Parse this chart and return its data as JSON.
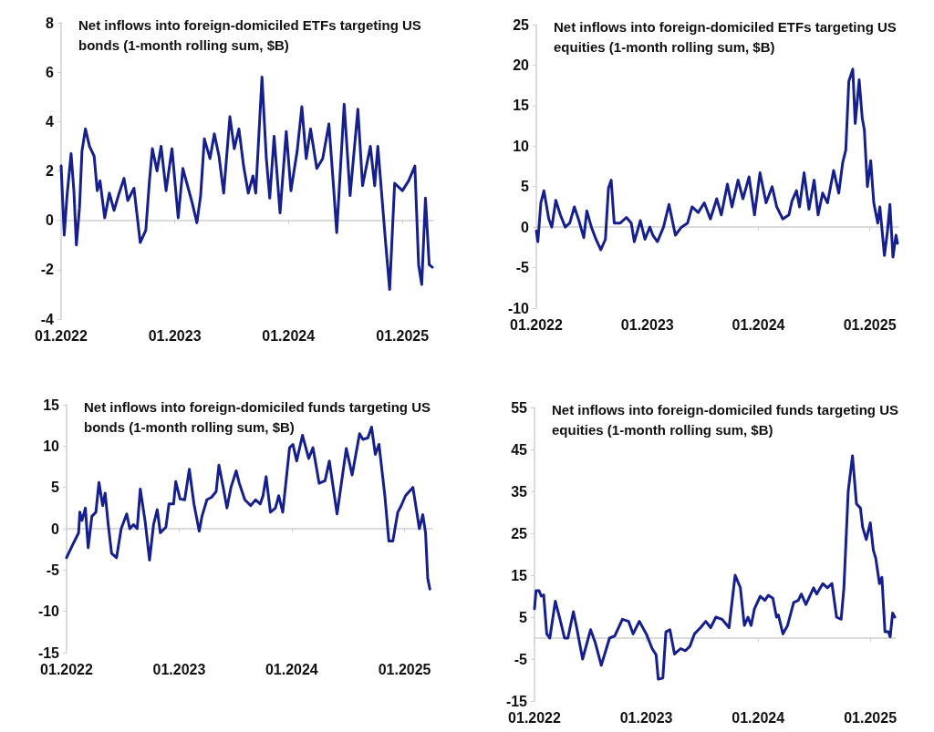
{
  "chart_data": [
    {
      "type": "line",
      "title": "Net inflows into foreign-domiciled ETFs targeting US bonds (1-month rolling sum, $B)",
      "xlim": [
        "2022-01-01",
        "2025-04-10"
      ],
      "xticks": [
        {
          "value": "2022-01-01",
          "label": "01.2022"
        },
        {
          "value": "2023-01-01",
          "label": "01.2023"
        },
        {
          "value": "2024-01-01",
          "label": "01.2024"
        },
        {
          "value": "2025-01-01",
          "label": "01.2025"
        }
      ],
      "ylim": [
        -4,
        8
      ],
      "yticks": [
        -4,
        -2,
        0,
        2,
        4,
        6,
        8
      ],
      "series": [
        {
          "color": "#15208e",
          "x": [
            "2022-01-01",
            "2022-01-11",
            "2022-01-20",
            "2022-02-02",
            "2022-02-11",
            "2022-02-19",
            "2022-03-01",
            "2022-03-09",
            "2022-03-20",
            "2022-04-02",
            "2022-04-17",
            "2022-04-27",
            "2022-05-06",
            "2022-05-21",
            "2022-06-05",
            "2022-06-20",
            "2022-07-04",
            "2022-07-22",
            "2022-08-03",
            "2022-08-23",
            "2022-09-12",
            "2022-09-30",
            "2022-10-11",
            "2022-10-21",
            "2022-11-05",
            "2022-11-18",
            "2022-12-04",
            "2022-12-23",
            "2023-01-12",
            "2023-01-27",
            "2023-02-11",
            "2023-02-26",
            "2023-03-13",
            "2023-03-25",
            "2023-04-06",
            "2023-04-24",
            "2023-05-08",
            "2023-05-23",
            "2023-06-07",
            "2023-06-27",
            "2023-07-11",
            "2023-07-26",
            "2023-08-10",
            "2023-08-25",
            "2023-09-09",
            "2023-09-18",
            "2023-10-08",
            "2023-10-22",
            "2023-11-02",
            "2023-11-16",
            "2023-12-05",
            "2023-12-25",
            "2024-01-09",
            "2024-01-29",
            "2024-02-13",
            "2024-02-27",
            "2024-03-12",
            "2024-04-01",
            "2024-04-20",
            "2024-05-10",
            "2024-05-24",
            "2024-06-04",
            "2024-06-28",
            "2024-07-17",
            "2024-08-11",
            "2024-08-26",
            "2024-09-20",
            "2024-10-04",
            "2024-10-14",
            "2024-11-08",
            "2024-11-21",
            "2024-12-07",
            "2025-01-01",
            "2025-01-21",
            "2025-02-10",
            "2025-02-22",
            "2025-03-04",
            "2025-03-16",
            "2025-03-28",
            "2025-04-07"
          ],
          "values": [
            2.2,
            -0.6,
            1.0,
            2.7,
            1.2,
            -1.0,
            0.5,
            2.8,
            3.7,
            3.0,
            2.6,
            1.2,
            1.6,
            0.1,
            1.1,
            0.4,
            1.0,
            1.7,
            0.8,
            1.3,
            -0.9,
            -0.4,
            1.5,
            2.9,
            2.0,
            3.0,
            1.2,
            2.9,
            0.1,
            2.1,
            1.4,
            0.7,
            -0.1,
            1.0,
            3.3,
            2.5,
            3.5,
            2.6,
            1.1,
            4.2,
            2.9,
            3.7,
            2.2,
            1.1,
            1.8,
            1.1,
            5.8,
            2.5,
            0.9,
            3.4,
            0.3,
            3.6,
            1.2,
            2.8,
            4.6,
            2.5,
            3.7,
            2.1,
            2.5,
            3.9,
            1.5,
            -0.5,
            4.7,
            1.0,
            4.5,
            1.4,
            3.0,
            1.4,
            3.0,
            -0.9,
            -2.8,
            1.5,
            1.2,
            1.6,
            2.2,
            -1.8,
            -2.6,
            0.9,
            -1.8,
            -1.9
          ]
        }
      ]
    },
    {
      "type": "line",
      "title": "Net inflows into foreign-domiciled ETFs targeting US equities (1-month rolling sum, $B)",
      "xlim": [
        "2022-01-01",
        "2025-04-05"
      ],
      "xticks": [
        {
          "value": "2022-01-01",
          "label": "01.2022"
        },
        {
          "value": "2023-01-01",
          "label": "01.2023"
        },
        {
          "value": "2024-01-01",
          "label": "01.2024"
        },
        {
          "value": "2025-01-01",
          "label": "01.2025"
        }
      ],
      "ylim": [
        -10,
        25
      ],
      "yticks": [
        -10,
        -5,
        0,
        5,
        10,
        15,
        20,
        25
      ],
      "series": [
        {
          "color": "#15208e",
          "x": [
            "2022-01-01",
            "2022-01-06",
            "2022-01-16",
            "2022-01-26",
            "2022-02-11",
            "2022-02-21",
            "2022-03-06",
            "2022-03-21",
            "2022-04-06",
            "2022-04-21",
            "2022-05-06",
            "2022-05-21",
            "2022-06-06",
            "2022-06-16",
            "2022-07-01",
            "2022-07-16",
            "2022-08-01",
            "2022-08-16",
            "2022-08-26",
            "2022-09-04",
            "2022-09-14",
            "2022-10-04",
            "2022-10-24",
            "2022-11-09",
            "2022-11-19",
            "2022-12-09",
            "2022-12-24",
            "2023-01-09",
            "2023-01-19",
            "2023-02-03",
            "2023-02-23",
            "2023-03-13",
            "2023-04-03",
            "2023-04-23",
            "2023-05-13",
            "2023-05-28",
            "2023-06-17",
            "2023-07-07",
            "2023-07-27",
            "2023-08-17",
            "2023-09-01",
            "2023-09-21",
            "2023-10-06",
            "2023-10-26",
            "2023-11-11",
            "2023-12-01",
            "2023-12-19",
            "2024-01-06",
            "2024-01-26",
            "2024-02-15",
            "2024-03-01",
            "2024-03-21",
            "2024-04-10",
            "2024-04-20",
            "2024-05-05",
            "2024-05-15",
            "2024-05-30",
            "2024-06-15",
            "2024-07-02",
            "2024-07-15",
            "2024-07-30",
            "2024-08-15",
            "2024-09-04",
            "2024-09-21",
            "2024-10-04",
            "2024-10-14",
            "2024-10-24",
            "2024-11-06",
            "2024-11-14",
            "2024-11-27",
            "2024-12-07",
            "2024-12-14",
            "2024-12-24",
            "2025-01-04",
            "2025-01-14",
            "2025-01-27",
            "2025-02-03",
            "2025-02-18",
            "2025-02-28",
            "2025-03-08",
            "2025-03-18",
            "2025-03-28",
            "2025-04-02"
          ],
          "values": [
            -0.5,
            -1.8,
            3,
            4.5,
            1,
            0,
            3.3,
            1.5,
            0,
            0.5,
            2.5,
            0.8,
            -1.3,
            2,
            0,
            -1.5,
            -2.8,
            -1.5,
            4.8,
            5.8,
            0.5,
            0.5,
            1.2,
            0.5,
            -1.8,
            0.8,
            -1.5,
            0,
            -1,
            -1.8,
            0,
            2.8,
            -1,
            0,
            0.5,
            2.5,
            1.8,
            3.0,
            1.0,
            3.5,
            1.5,
            5.3,
            2.5,
            5.8,
            3.5,
            6.2,
            1.5,
            6.7,
            3.0,
            5.0,
            2.5,
            1.0,
            1.5,
            3.2,
            4.5,
            2.5,
            6.7,
            2.2,
            5.8,
            1.5,
            4.2,
            3.0,
            7.0,
            4.2,
            8.0,
            9.5,
            18.0,
            19.5,
            12.8,
            18.2,
            13.5,
            12,
            5.0,
            8.2,
            3.0,
            0.5,
            2.5,
            -3.5,
            -0.5,
            2.8,
            -3.7,
            -1.0,
            -2.0
          ]
        }
      ]
    },
    {
      "type": "line",
      "title": "Net inflows into foreign-domiciled funds targeting US bonds (1-month rolling sum, $B)",
      "xlim": [
        "2022-01-01",
        "2025-04-01"
      ],
      "xticks": [
        {
          "value": "2022-01-01",
          "label": "01.2022"
        },
        {
          "value": "2023-01-01",
          "label": "01.2023"
        },
        {
          "value": "2024-01-01",
          "label": "01.2024"
        },
        {
          "value": "2025-01-01",
          "label": "01.2025"
        }
      ],
      "ylim": [
        -15,
        15
      ],
      "yticks": [
        -15,
        -10,
        -5,
        0,
        5,
        10,
        15
      ],
      "series": [
        {
          "color": "#15208e",
          "x": [
            "2022-01-01",
            "2022-01-20",
            "2022-02-09",
            "2022-02-13",
            "2022-02-20",
            "2022-03-03",
            "2022-03-12",
            "2022-03-24",
            "2022-04-06",
            "2022-04-16",
            "2022-04-28",
            "2022-05-06",
            "2022-05-16",
            "2022-05-27",
            "2022-06-12",
            "2022-06-27",
            "2022-07-15",
            "2022-07-25",
            "2022-08-06",
            "2022-08-18",
            "2022-08-28",
            "2022-09-13",
            "2022-09-27",
            "2022-10-10",
            "2022-10-22",
            "2022-11-01",
            "2022-11-19",
            "2022-11-29",
            "2022-12-14",
            "2022-12-21",
            "2023-01-04",
            "2023-01-19",
            "2023-02-03",
            "2023-02-18",
            "2023-03-07",
            "2023-03-16",
            "2023-04-01",
            "2023-04-16",
            "2023-05-01",
            "2023-05-10",
            "2023-05-24",
            "2023-06-05",
            "2023-06-18",
            "2023-07-05",
            "2023-07-15",
            "2023-08-02",
            "2023-08-21",
            "2023-09-06",
            "2023-09-21",
            "2023-09-30",
            "2023-10-10",
            "2023-10-24",
            "2023-11-09",
            "2023-11-20",
            "2023-12-03",
            "2023-12-25",
            "2024-01-05",
            "2024-01-17",
            "2024-02-05",
            "2024-02-25",
            "2024-03-10",
            "2024-03-30",
            "2024-04-18",
            "2024-05-02",
            "2024-05-27",
            "2024-06-26",
            "2024-07-15",
            "2024-08-08",
            "2024-08-19",
            "2024-09-04",
            "2024-09-16",
            "2024-09-28",
            "2024-10-10",
            "2024-10-29",
            "2024-11-11",
            "2024-11-24",
            "2024-12-10",
            "2024-12-20",
            "2025-01-04",
            "2025-01-28",
            "2025-02-18",
            "2025-03-01",
            "2025-03-10",
            "2025-03-17",
            "2025-03-24"
          ],
          "values": [
            -3.5,
            -2.0,
            -0.5,
            2.0,
            1.0,
            2.5,
            -2.3,
            1.5,
            2.0,
            5.6,
            2.8,
            4.3,
            0.5,
            -3.0,
            -3.5,
            0,
            1.8,
            0,
            0.5,
            0,
            4.8,
            0.8,
            -3.8,
            0.5,
            2.3,
            -0.5,
            0.2,
            3.0,
            3.0,
            5.7,
            3.6,
            3.5,
            7.2,
            3.0,
            -0.3,
            1.5,
            3.5,
            3.8,
            4.5,
            7.7,
            5.0,
            2.5,
            5.0,
            7.0,
            5.5,
            3.5,
            2.8,
            3.5,
            3.0,
            4.0,
            6.3,
            2.0,
            2.5,
            4.0,
            2.0,
            9.8,
            10.2,
            8.2,
            11.3,
            8.5,
            9.8,
            5.5,
            5.8,
            8.2,
            1.8,
            9.7,
            6.5,
            11.5,
            10.8,
            11.0,
            12.3,
            9.0,
            10.2,
            4.0,
            -1.5,
            -1.5,
            2.0,
            2.7,
            4.0,
            5.0,
            0,
            1.7,
            -0.5,
            -6.0,
            -7.3
          ]
        }
      ]
    },
    {
      "type": "line",
      "title": "Net inflows into foreign-domiciled funds targeting US equities (1-month rolling sum, $B)",
      "xlim": [
        "2022-01-01",
        "2025-03-25"
      ],
      "xticks": [
        {
          "value": "2022-01-01",
          "label": "01.2022"
        },
        {
          "value": "2023-01-01",
          "label": "01.2023"
        },
        {
          "value": "2024-01-01",
          "label": "01.2024"
        },
        {
          "value": "2025-01-01",
          "label": "01.2025"
        }
      ],
      "ylim": [
        -15,
        55
      ],
      "yticks": [
        -15,
        -5,
        5,
        15,
        25,
        35,
        45,
        55
      ],
      "series": [
        {
          "color": "#15208e",
          "x": [
            "2022-01-01",
            "2022-01-06",
            "2022-01-16",
            "2022-01-23",
            "2022-01-31",
            "2022-02-10",
            "2022-02-20",
            "2022-03-10",
            "2022-03-27",
            "2022-04-09",
            "2022-04-20",
            "2022-05-08",
            "2022-05-20",
            "2022-06-07",
            "2022-07-03",
            "2022-07-18",
            "2022-08-07",
            "2022-09-03",
            "2022-09-20",
            "2022-10-15",
            "2022-11-04",
            "2022-11-19",
            "2022-12-09",
            "2023-01-01",
            "2023-01-20",
            "2023-02-02",
            "2023-02-09",
            "2023-02-24",
            "2023-03-06",
            "2023-03-19",
            "2023-04-03",
            "2023-04-23",
            "2023-05-08",
            "2023-05-23",
            "2023-06-07",
            "2023-06-27",
            "2023-07-14",
            "2023-07-30",
            "2023-08-16",
            "2023-09-05",
            "2023-09-28",
            "2023-10-18",
            "2023-11-04",
            "2023-11-17",
            "2023-11-29",
            "2023-12-09",
            "2023-12-20",
            "2024-01-08",
            "2024-01-23",
            "2024-02-03",
            "2024-02-18",
            "2024-03-01",
            "2024-03-07",
            "2024-03-22",
            "2024-04-06",
            "2024-04-26",
            "2024-05-11",
            "2024-05-21",
            "2024-06-05",
            "2024-06-30",
            "2024-07-10",
            "2024-07-30",
            "2024-08-14",
            "2024-08-29",
            "2024-09-13",
            "2024-09-28",
            "2024-10-07",
            "2024-10-21",
            "2024-11-04",
            "2024-11-17",
            "2024-11-30",
            "2024-12-07",
            "2024-12-19",
            "2025-01-01",
            "2025-01-11",
            "2025-01-19",
            "2025-01-31",
            "2025-02-08",
            "2025-02-18",
            "2025-03-01",
            "2025-03-07",
            "2025-03-15",
            "2025-03-22"
          ],
          "values": [
            7,
            11.3,
            11.3,
            10,
            10.3,
            1,
            0,
            8.8,
            4,
            0,
            0,
            6.3,
            2,
            -5.0,
            2,
            -1,
            -6.5,
            0,
            0.5,
            4.5,
            4,
            1.0,
            4.0,
            1.0,
            -2.5,
            -4,
            -9.8,
            -9.5,
            1.5,
            2.0,
            -3.8,
            -2.5,
            -3.0,
            -2.0,
            1.0,
            2.5,
            4.0,
            2.5,
            5.0,
            4.5,
            2.5,
            15.0,
            12.0,
            3.0,
            5.0,
            3.0,
            7.0,
            10.0,
            9.0,
            10.2,
            9.5,
            5.0,
            5.5,
            1.0,
            3.0,
            8.5,
            9.0,
            10.5,
            8.0,
            12.0,
            10.5,
            13.0,
            12.0,
            13.0,
            5.0,
            4.5,
            12.0,
            35.0,
            43.5,
            32.0,
            31.0,
            26.5,
            23.5,
            27.5,
            21.0,
            19.0,
            13.0,
            14.5,
            1.5,
            1.5,
            0.3,
            6.0,
            5.0
          ]
        }
      ]
    }
  ]
}
